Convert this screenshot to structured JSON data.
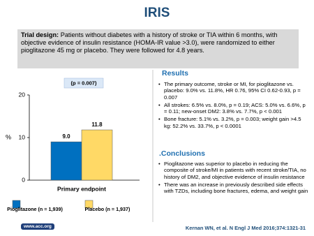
{
  "title": "IRIS",
  "trial_design": {
    "label": "Trial design:",
    "text": "Patients without diabetes with a history of stroke or TIA within 6 months, with objective evidence of insulin resistance (HOMA-IR value >3.0), were randomized to either pioglitazone 45 mg or placebo. They were followed for 4.8 years."
  },
  "chart_data": {
    "type": "bar",
    "annotation": "(p = 0.007)",
    "y_label": "%",
    "categories": [
      "Primary endpoint"
    ],
    "series": [
      {
        "name": "Pioglitazone (n = 1,939)",
        "color": "#0070c0",
        "values": [
          9.0
        ],
        "value_labels": [
          "9.0"
        ]
      },
      {
        "name": "Placebo (n = 1,937)",
        "color": "#ffd966",
        "values": [
          11.8
        ],
        "value_labels": [
          "11.8"
        ]
      }
    ],
    "ylim": [
      0,
      20
    ],
    "yticks": [
      0,
      10,
      20
    ]
  },
  "results": {
    "heading": "Results",
    "bullets": [
      "The primary outcome, stroke or MI, for pioglitazone vs. placebo: 9.0% vs. 11.8%, HR 0.76, 95% CI 0.62-0.93, p = 0.007",
      "All strokes: 6.5% vs. 8.0%, p = 0.19; ACS: 5.0% vs. 6.6%, p = 0.11; new-onset DM2: 3.8% vs. 7.7%, p < 0.001",
      "Bone fracture: 5.1% vs. 3.2%, p = 0.003; weight gain >4.5 kg: 52.2% vs. 33.7%, p < 0.0001"
    ]
  },
  "conclusions": {
    "heading": ".Conclusions",
    "bullets": [
      "Pioglitazone was superior to placebo in reducing the composite of stroke/MI in patients with recent stroke/TIA, no history of DM2, and objective evidence of insulin resistance",
      "There was an increase in previously described side effects with TZDs, including bone fractures, edema, and weight gain"
    ]
  },
  "citation": "Kernan WN, et al. N Engl J Med 2016;374:1321-31",
  "footer": "www.acc.org"
}
